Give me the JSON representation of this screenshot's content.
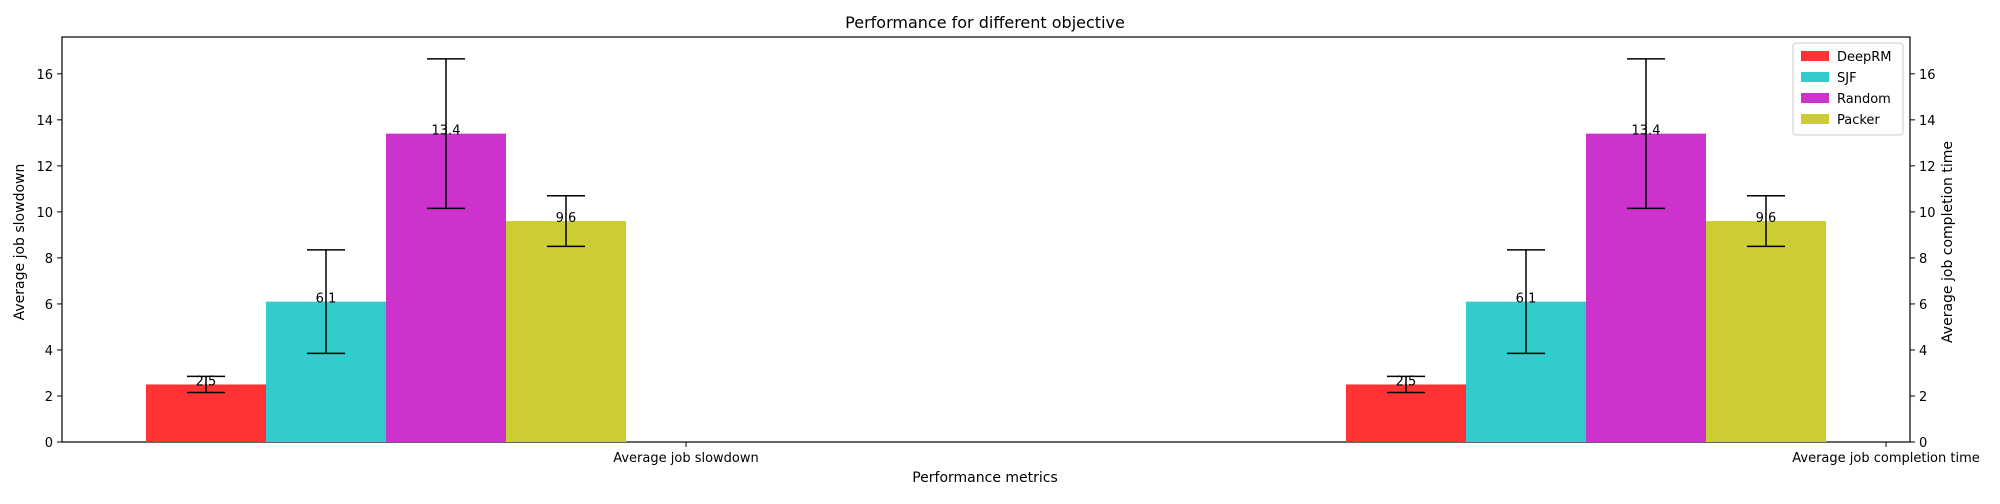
{
  "chart_data": {
    "type": "bar",
    "title": "Performance for different objective",
    "xlabel": "Performance metrics",
    "ylabel_left": "Average job slowdown",
    "ylabel_right": "Average job completion time",
    "ylim": [
      0,
      17.6
    ],
    "yticks": [
      0,
      2,
      4,
      6,
      8,
      10,
      12,
      14,
      16
    ],
    "categories": [
      "Average job slowdown",
      "Average job completion time"
    ],
    "series": [
      {
        "name": "DeepRM",
        "color": "#ff3333",
        "values": [
          2.5,
          2.5
        ],
        "errors": [
          0.35,
          0.35
        ],
        "labels": [
          "2.5",
          "2.5"
        ]
      },
      {
        "name": "SJF",
        "color": "#33cccc",
        "values": [
          6.1,
          6.1
        ],
        "errors": [
          2.25,
          2.25
        ],
        "labels": [
          "6.1",
          "6.1"
        ]
      },
      {
        "name": "Random",
        "color": "#cc33cc",
        "values": [
          13.4,
          13.4
        ],
        "errors": [
          3.25,
          3.25
        ],
        "labels": [
          "13.4",
          "13.4"
        ]
      },
      {
        "name": "Packer",
        "color": "#cccc33",
        "values": [
          9.6,
          9.6
        ],
        "errors": [
          1.1,
          1.1
        ],
        "labels": [
          "9.6",
          "9.6"
        ]
      }
    ],
    "grid": false,
    "legend_position": "top-right",
    "error_bars": true
  }
}
